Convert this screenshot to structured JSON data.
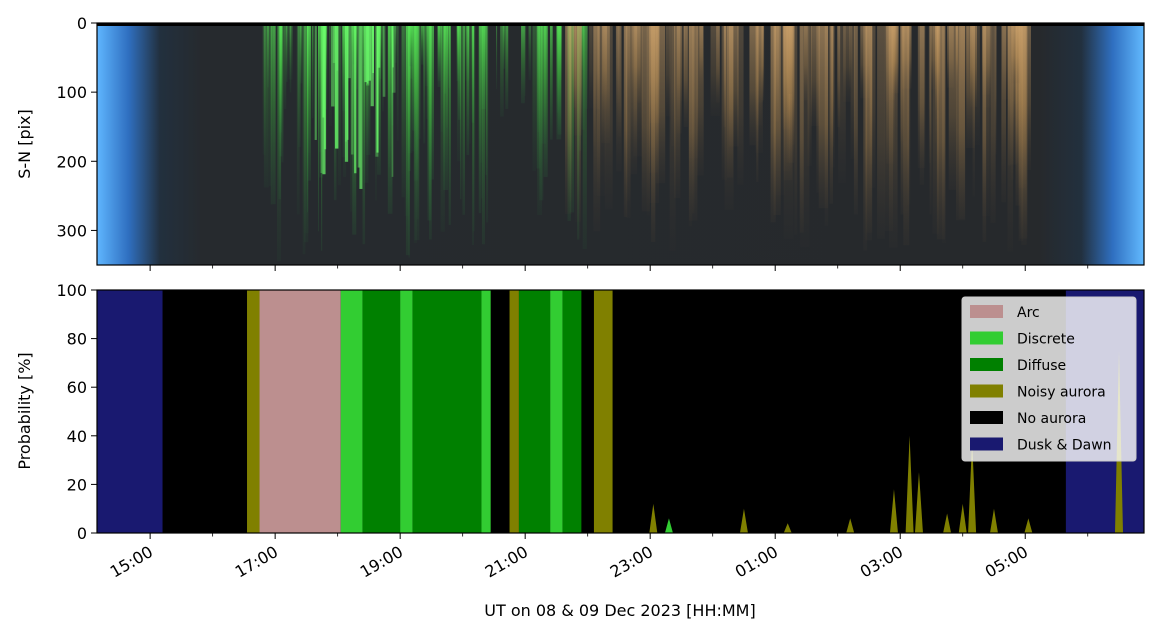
{
  "chart_data": [
    {
      "type": "heatmap",
      "ylabel": "S-N [pix]",
      "ylim": [
        350,
        0
      ],
      "yticks": [
        "0",
        "100",
        "200",
        "300"
      ],
      "ytick_values": [
        0,
        100,
        200,
        300
      ],
      "description_colors": {
        "twilight": "#4a9ef0",
        "green_aurora": "#4fd04f",
        "red_aurora": "#c89a5e",
        "background": "#2a2d30"
      }
    },
    {
      "type": "area",
      "stacked": true,
      "xlabel": "UT on 08 & 09 Dec 2023 [HH:MM]",
      "ylabel": "Probability [%]",
      "ylim": [
        0,
        100
      ],
      "yticks": [
        "0",
        "20",
        "40",
        "60",
        "80",
        "100"
      ],
      "ytick_values": [
        0,
        20,
        40,
        60,
        80,
        100
      ],
      "xlim_hours": [
        14.15,
        30.9
      ],
      "xticks": [
        {
          "h": 15,
          "label": "15:00"
        },
        {
          "h": 17,
          "label": "17:00"
        },
        {
          "h": 19,
          "label": "19:00"
        },
        {
          "h": 21,
          "label": "21:00"
        },
        {
          "h": 23,
          "label": "23:00"
        },
        {
          "h": 25,
          "label": "01:00"
        },
        {
          "h": 27,
          "label": "03:00"
        },
        {
          "h": 29,
          "label": "05:00"
        }
      ],
      "minor_ticks": [
        16,
        18,
        20,
        22,
        24,
        26,
        28,
        30
      ],
      "legend_position": "top-right",
      "series": [
        {
          "name": "Arc",
          "color": "#bc8f8f"
        },
        {
          "name": "Discrete",
          "color": "#32cd32"
        },
        {
          "name": "Diffuse",
          "color": "#008000"
        },
        {
          "name": "Noisy aurora",
          "color": "#808000"
        },
        {
          "name": "No aurora",
          "color": "#000000"
        },
        {
          "name": "Dusk & Dawn",
          "color": "#191970"
        }
      ],
      "segments": [
        {
          "start": 14.15,
          "end": 15.2,
          "class": "Dusk & Dawn"
        },
        {
          "start": 15.2,
          "end": 16.55,
          "class": "No aurora"
        },
        {
          "start": 16.55,
          "end": 16.75,
          "class": "Noisy aurora"
        },
        {
          "start": 16.75,
          "end": 18.05,
          "class": "Arc"
        },
        {
          "start": 18.05,
          "end": 18.4,
          "class": "Discrete"
        },
        {
          "start": 18.4,
          "end": 19.0,
          "class": "Diffuse"
        },
        {
          "start": 19.0,
          "end": 19.2,
          "class": "Discrete"
        },
        {
          "start": 19.2,
          "end": 20.3,
          "class": "Diffuse"
        },
        {
          "start": 20.3,
          "end": 20.45,
          "class": "Discrete"
        },
        {
          "start": 20.45,
          "end": 20.75,
          "class": "No aurora"
        },
        {
          "start": 20.75,
          "end": 20.9,
          "class": "Noisy aurora"
        },
        {
          "start": 20.9,
          "end": 21.4,
          "class": "Diffuse"
        },
        {
          "start": 21.4,
          "end": 21.6,
          "class": "Discrete"
        },
        {
          "start": 21.6,
          "end": 21.9,
          "class": "Diffuse"
        },
        {
          "start": 21.9,
          "end": 22.1,
          "class": "No aurora"
        },
        {
          "start": 22.1,
          "end": 22.4,
          "class": "Noisy aurora"
        },
        {
          "start": 22.4,
          "end": 29.65,
          "class": "No aurora"
        },
        {
          "start": 29.65,
          "end": 30.9,
          "class": "Dusk & Dawn"
        }
      ],
      "spikes": [
        {
          "h": 23.05,
          "v": 12,
          "class": "Noisy aurora"
        },
        {
          "h": 23.3,
          "v": 6,
          "class": "Discrete"
        },
        {
          "h": 24.5,
          "v": 10,
          "class": "Noisy aurora"
        },
        {
          "h": 25.2,
          "v": 4,
          "class": "Noisy aurora"
        },
        {
          "h": 26.2,
          "v": 6,
          "class": "Noisy aurora"
        },
        {
          "h": 26.9,
          "v": 18,
          "class": "Noisy aurora"
        },
        {
          "h": 27.15,
          "v": 40,
          "class": "Noisy aurora"
        },
        {
          "h": 27.3,
          "v": 25,
          "class": "Noisy aurora"
        },
        {
          "h": 27.75,
          "v": 8,
          "class": "Noisy aurora"
        },
        {
          "h": 28.0,
          "v": 12,
          "class": "Noisy aurora"
        },
        {
          "h": 28.15,
          "v": 38,
          "class": "Noisy aurora"
        },
        {
          "h": 28.5,
          "v": 10,
          "class": "Noisy aurora"
        },
        {
          "h": 29.05,
          "v": 6,
          "class": "Noisy aurora"
        },
        {
          "h": 30.5,
          "v": 75,
          "class": "Noisy aurora"
        }
      ]
    }
  ]
}
